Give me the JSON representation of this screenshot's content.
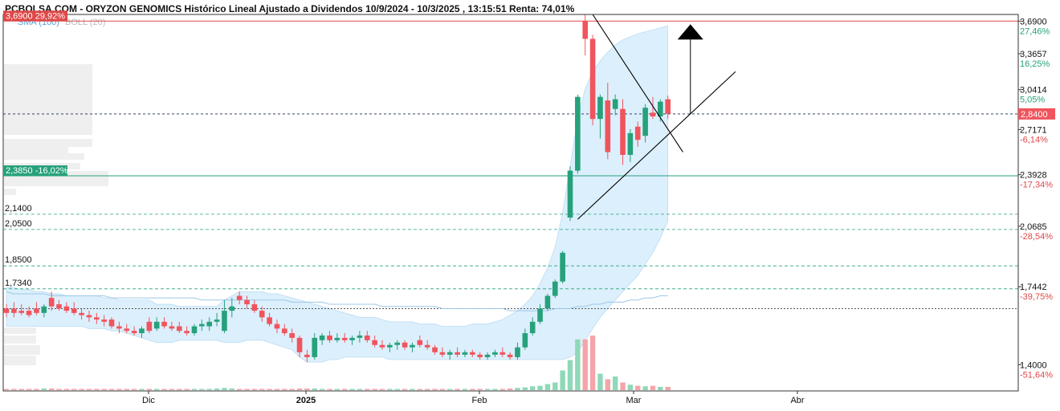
{
  "header": {
    "title": "PCBOLSA.COM - ORYZON GENOMICS Histórico Lineal Ajustado a Dividendos 10/9/2024 - 10/3/2025 , 13:15:51 Renta: 74,01%",
    "indicators": [
      "SMA (100)",
      "BOLL (20)"
    ]
  },
  "colors": {
    "up": "#26a17b",
    "down": "#f0545d",
    "up_volume": "#8fd8b8",
    "down_volume": "#f5a5aa",
    "boll_fill": "#dceffc",
    "sma": "#9cc8e8",
    "resistance": "#e04848",
    "support": "#26a17b"
  },
  "chart_data": {
    "type": "candlestick",
    "x_axis": {
      "labels": [
        "Dic",
        "2025",
        "Feb",
        "Mar",
        "Abr"
      ]
    },
    "y_axis": {
      "scale": "log",
      "range": [
        1.3,
        3.76
      ],
      "ticks": [
        {
          "price": "3,6900",
          "pct": "27,46%",
          "sign": "pos",
          "value": 3.69
        },
        {
          "price": "3,3657",
          "pct": "16,25%",
          "sign": "pos",
          "value": 3.3657
        },
        {
          "price": "3,0414",
          "pct": "5,05%",
          "sign": "pos",
          "value": 3.0414
        },
        {
          "price": "2,7171",
          "pct": "-6,14%",
          "sign": "neg",
          "value": 2.7171
        },
        {
          "price": "2,3928",
          "pct": "-17,34%",
          "sign": "neg",
          "value": 2.3928
        },
        {
          "price": "2,0685",
          "pct": "-28,54%",
          "sign": "neg",
          "value": 2.0685
        },
        {
          "price": "1,7442",
          "pct": "-39,75%",
          "sign": "neg",
          "value": 1.7442
        },
        {
          "price": "1,4000",
          "pct": "-51,64%",
          "sign": "neg",
          "value": 1.4
        }
      ]
    },
    "last_price": {
      "label": "2,8400",
      "value": 2.84
    },
    "reference_lines": [
      {
        "type": "resistance",
        "label": "3,6900  29,92%",
        "value": 3.69
      },
      {
        "type": "support",
        "label": "2,3850  -16,02%",
        "value": 2.385
      },
      {
        "type": "level",
        "label": "2,1400",
        "value": 2.14
      },
      {
        "type": "level",
        "label": "2,0500",
        "value": 2.05
      },
      {
        "type": "level",
        "label": "1,8500",
        "value": 1.85
      },
      {
        "type": "level",
        "label": "1,7340",
        "value": 1.734
      },
      {
        "type": "level",
        "label": "",
        "value": 1.64
      }
    ],
    "candles": [
      {
        "o": 1.64,
        "h": 1.66,
        "l": 1.6,
        "c": 1.62
      },
      {
        "o": 1.64,
        "h": 1.67,
        "l": 1.6,
        "c": 1.62
      },
      {
        "o": 1.63,
        "h": 1.66,
        "l": 1.61,
        "c": 1.62
      },
      {
        "o": 1.63,
        "h": 1.65,
        "l": 1.6,
        "c": 1.61
      },
      {
        "o": 1.64,
        "h": 1.67,
        "l": 1.61,
        "c": 1.62
      },
      {
        "o": 1.62,
        "h": 1.66,
        "l": 1.6,
        "c": 1.65
      },
      {
        "o": 1.69,
        "h": 1.72,
        "l": 1.63,
        "c": 1.65
      },
      {
        "o": 1.66,
        "h": 1.68,
        "l": 1.63,
        "c": 1.64
      },
      {
        "o": 1.65,
        "h": 1.67,
        "l": 1.62,
        "c": 1.63
      },
      {
        "o": 1.64,
        "h": 1.67,
        "l": 1.61,
        "c": 1.62
      },
      {
        "o": 1.62,
        "h": 1.64,
        "l": 1.59,
        "c": 1.61
      },
      {
        "o": 1.61,
        "h": 1.63,
        "l": 1.58,
        "c": 1.6
      },
      {
        "o": 1.6,
        "h": 1.62,
        "l": 1.57,
        "c": 1.59
      },
      {
        "o": 1.59,
        "h": 1.61,
        "l": 1.56,
        "c": 1.58
      },
      {
        "o": 1.59,
        "h": 1.6,
        "l": 1.55,
        "c": 1.56
      },
      {
        "o": 1.56,
        "h": 1.58,
        "l": 1.53,
        "c": 1.55
      },
      {
        "o": 1.55,
        "h": 1.57,
        "l": 1.53,
        "c": 1.54
      },
      {
        "o": 1.54,
        "h": 1.56,
        "l": 1.52,
        "c": 1.53
      },
      {
        "o": 1.53,
        "h": 1.56,
        "l": 1.51,
        "c": 1.55
      },
      {
        "o": 1.58,
        "h": 1.6,
        "l": 1.53,
        "c": 1.54
      },
      {
        "o": 1.55,
        "h": 1.6,
        "l": 1.54,
        "c": 1.58
      },
      {
        "o": 1.58,
        "h": 1.6,
        "l": 1.55,
        "c": 1.56
      },
      {
        "o": 1.56,
        "h": 1.58,
        "l": 1.54,
        "c": 1.55
      },
      {
        "o": 1.56,
        "h": 1.58,
        "l": 1.53,
        "c": 1.54
      },
      {
        "o": 1.54,
        "h": 1.56,
        "l": 1.52,
        "c": 1.53
      },
      {
        "o": 1.53,
        "h": 1.57,
        "l": 1.52,
        "c": 1.56
      },
      {
        "o": 1.56,
        "h": 1.59,
        "l": 1.54,
        "c": 1.57
      },
      {
        "o": 1.56,
        "h": 1.6,
        "l": 1.54,
        "c": 1.58
      },
      {
        "o": 1.58,
        "h": 1.62,
        "l": 1.56,
        "c": 1.59
      },
      {
        "o": 1.54,
        "h": 1.68,
        "l": 1.53,
        "c": 1.63
      },
      {
        "o": 1.63,
        "h": 1.69,
        "l": 1.6,
        "c": 1.65
      },
      {
        "o": 1.7,
        "h": 1.72,
        "l": 1.66,
        "c": 1.68
      },
      {
        "o": 1.68,
        "h": 1.7,
        "l": 1.64,
        "c": 1.66
      },
      {
        "o": 1.66,
        "h": 1.68,
        "l": 1.62,
        "c": 1.63
      },
      {
        "o": 1.63,
        "h": 1.65,
        "l": 1.58,
        "c": 1.6
      },
      {
        "o": 1.6,
        "h": 1.62,
        "l": 1.56,
        "c": 1.57
      },
      {
        "o": 1.57,
        "h": 1.59,
        "l": 1.53,
        "c": 1.55
      },
      {
        "o": 1.55,
        "h": 1.57,
        "l": 1.52,
        "c": 1.53
      },
      {
        "o": 1.53,
        "h": 1.55,
        "l": 1.49,
        "c": 1.51
      },
      {
        "o": 1.51,
        "h": 1.52,
        "l": 1.43,
        "c": 1.45
      },
      {
        "o": 1.44,
        "h": 1.46,
        "l": 1.41,
        "c": 1.43
      },
      {
        "o": 1.43,
        "h": 1.53,
        "l": 1.42,
        "c": 1.51
      },
      {
        "o": 1.5,
        "h": 1.53,
        "l": 1.48,
        "c": 1.52
      },
      {
        "o": 1.52,
        "h": 1.54,
        "l": 1.49,
        "c": 1.5
      },
      {
        "o": 1.5,
        "h": 1.53,
        "l": 1.49,
        "c": 1.51
      },
      {
        "o": 1.51,
        "h": 1.53,
        "l": 1.49,
        "c": 1.5
      },
      {
        "o": 1.5,
        "h": 1.52,
        "l": 1.48,
        "c": 1.51
      },
      {
        "o": 1.51,
        "h": 1.54,
        "l": 1.49,
        "c": 1.52
      },
      {
        "o": 1.52,
        "h": 1.54,
        "l": 1.49,
        "c": 1.5
      },
      {
        "o": 1.5,
        "h": 1.52,
        "l": 1.47,
        "c": 1.48
      },
      {
        "o": 1.48,
        "h": 1.5,
        "l": 1.46,
        "c": 1.47
      },
      {
        "o": 1.47,
        "h": 1.49,
        "l": 1.45,
        "c": 1.48
      },
      {
        "o": 1.48,
        "h": 1.5,
        "l": 1.46,
        "c": 1.49
      },
      {
        "o": 1.49,
        "h": 1.5,
        "l": 1.46,
        "c": 1.47
      },
      {
        "o": 1.47,
        "h": 1.49,
        "l": 1.45,
        "c": 1.48
      },
      {
        "o": 1.5,
        "h": 1.52,
        "l": 1.47,
        "c": 1.48
      },
      {
        "o": 1.48,
        "h": 1.5,
        "l": 1.46,
        "c": 1.47
      },
      {
        "o": 1.47,
        "h": 1.48,
        "l": 1.44,
        "c": 1.45
      },
      {
        "o": 1.45,
        "h": 1.47,
        "l": 1.43,
        "c": 1.44
      },
      {
        "o": 1.44,
        "h": 1.46,
        "l": 1.42,
        "c": 1.45
      },
      {
        "o": 1.45,
        "h": 1.47,
        "l": 1.43,
        "c": 1.44
      },
      {
        "o": 1.44,
        "h": 1.46,
        "l": 1.43,
        "c": 1.45
      },
      {
        "o": 1.45,
        "h": 1.46,
        "l": 1.43,
        "c": 1.44
      },
      {
        "o": 1.44,
        "h": 1.45,
        "l": 1.42,
        "c": 1.43
      },
      {
        "o": 1.43,
        "h": 1.45,
        "l": 1.42,
        "c": 1.44
      },
      {
        "o": 1.44,
        "h": 1.46,
        "l": 1.43,
        "c": 1.45
      },
      {
        "o": 1.45,
        "h": 1.47,
        "l": 1.43,
        "c": 1.44
      },
      {
        "o": 1.44,
        "h": 1.45,
        "l": 1.42,
        "c": 1.43
      },
      {
        "o": 1.43,
        "h": 1.49,
        "l": 1.42,
        "c": 1.47
      },
      {
        "o": 1.47,
        "h": 1.55,
        "l": 1.46,
        "c": 1.53
      },
      {
        "o": 1.53,
        "h": 1.6,
        "l": 1.52,
        "c": 1.58
      },
      {
        "o": 1.58,
        "h": 1.66,
        "l": 1.57,
        "c": 1.64
      },
      {
        "o": 1.64,
        "h": 1.71,
        "l": 1.63,
        "c": 1.7
      },
      {
        "o": 1.7,
        "h": 1.78,
        "l": 1.69,
        "c": 1.77
      },
      {
        "o": 1.77,
        "h": 1.93,
        "l": 1.76,
        "c": 1.92
      },
      {
        "o": 2.12,
        "h": 2.45,
        "l": 2.1,
        "c": 2.42
      },
      {
        "o": 2.42,
        "h": 3.0,
        "l": 2.4,
        "c": 2.98
      },
      {
        "o": 3.69,
        "h": 3.76,
        "l": 3.35,
        "c": 3.51
      },
      {
        "o": 3.51,
        "h": 3.55,
        "l": 2.75,
        "c": 2.8
      },
      {
        "o": 2.8,
        "h": 3.0,
        "l": 2.65,
        "c": 2.98
      },
      {
        "o": 2.95,
        "h": 3.1,
        "l": 2.5,
        "c": 2.55
      },
      {
        "o": 2.88,
        "h": 3.0,
        "l": 2.83,
        "c": 2.96
      },
      {
        "o": 2.88,
        "h": 2.96,
        "l": 2.46,
        "c": 2.53
      },
      {
        "o": 2.53,
        "h": 2.72,
        "l": 2.48,
        "c": 2.69
      },
      {
        "o": 2.74,
        "h": 2.78,
        "l": 2.59,
        "c": 2.64
      },
      {
        "o": 2.67,
        "h": 2.92,
        "l": 2.62,
        "c": 2.89
      },
      {
        "o": 2.85,
        "h": 2.98,
        "l": 2.8,
        "c": 2.82
      },
      {
        "o": 2.82,
        "h": 2.96,
        "l": 2.78,
        "c": 2.94
      },
      {
        "o": 2.96,
        "h": 2.99,
        "l": 2.8,
        "c": 2.84
      }
    ],
    "volume_relative": [
      0.02,
      0.02,
      0.02,
      0.02,
      0.02,
      0.03,
      0.03,
      0.02,
      0.02,
      0.02,
      0.02,
      0.02,
      0.02,
      0.02,
      0.02,
      0.02,
      0.02,
      0.02,
      0.02,
      0.02,
      0.02,
      0.02,
      0.02,
      0.02,
      0.02,
      0.02,
      0.02,
      0.02,
      0.03,
      0.04,
      0.03,
      0.02,
      0.02,
      0.02,
      0.02,
      0.02,
      0.02,
      0.02,
      0.02,
      0.03,
      0.03,
      0.03,
      0.02,
      0.02,
      0.02,
      0.02,
      0.02,
      0.02,
      0.02,
      0.02,
      0.02,
      0.02,
      0.02,
      0.02,
      0.02,
      0.02,
      0.02,
      0.02,
      0.02,
      0.02,
      0.02,
      0.02,
      0.02,
      0.02,
      0.02,
      0.02,
      0.02,
      0.03,
      0.04,
      0.05,
      0.07,
      0.08,
      0.11,
      0.14,
      0.36,
      0.55,
      0.93,
      0.93,
      1.0,
      0.3,
      0.2,
      0.25,
      0.14,
      0.1,
      0.08,
      0.07,
      0.08,
      0.06,
      0.06
    ],
    "bollinger_band": {
      "start_index": 0,
      "upper": [
        1.74,
        1.74,
        1.73,
        1.73,
        1.72,
        1.72,
        1.71,
        1.71,
        1.7,
        1.7,
        1.7,
        1.7,
        1.7,
        1.69,
        1.69,
        1.68,
        1.68,
        1.68,
        1.68,
        1.68,
        1.66,
        1.66,
        1.66,
        1.65,
        1.65,
        1.65,
        1.65,
        1.65,
        1.65,
        1.68,
        1.7,
        1.72,
        1.72,
        1.72,
        1.72,
        1.71,
        1.71,
        1.7,
        1.69,
        1.68,
        1.67,
        1.66,
        1.65,
        1.64,
        1.63,
        1.62,
        1.61,
        1.6,
        1.6,
        1.6,
        1.59,
        1.58,
        1.58,
        1.58,
        1.58,
        1.57,
        1.57,
        1.57,
        1.56,
        1.56,
        1.56,
        1.56,
        1.57,
        1.57,
        1.57,
        1.58,
        1.59,
        1.61,
        1.63,
        1.66,
        1.7,
        1.76,
        1.84,
        1.95,
        2.15,
        2.45,
        2.8,
        3.05,
        3.2,
        3.3,
        3.38,
        3.45,
        3.5,
        3.53,
        3.56,
        3.58,
        3.6,
        3.62,
        3.64
      ],
      "lower": [
        1.56,
        1.56,
        1.56,
        1.56,
        1.56,
        1.56,
        1.56,
        1.56,
        1.56,
        1.56,
        1.56,
        1.55,
        1.55,
        1.55,
        1.54,
        1.54,
        1.53,
        1.52,
        1.51,
        1.5,
        1.49,
        1.49,
        1.49,
        1.5,
        1.5,
        1.5,
        1.5,
        1.5,
        1.5,
        1.49,
        1.49,
        1.49,
        1.5,
        1.5,
        1.5,
        1.49,
        1.48,
        1.47,
        1.46,
        1.43,
        1.41,
        1.41,
        1.41,
        1.42,
        1.42,
        1.43,
        1.43,
        1.43,
        1.43,
        1.43,
        1.43,
        1.42,
        1.42,
        1.42,
        1.42,
        1.42,
        1.42,
        1.42,
        1.42,
        1.42,
        1.42,
        1.42,
        1.42,
        1.42,
        1.42,
        1.42,
        1.42,
        1.42,
        1.42,
        1.42,
        1.42,
        1.42,
        1.42,
        1.42,
        1.42,
        1.43,
        1.45,
        1.5,
        1.55,
        1.6,
        1.64,
        1.68,
        1.72,
        1.76,
        1.8,
        1.86,
        1.92,
        2.0,
        2.1
      ]
    },
    "sma_100": [
      1.72,
      1.71,
      1.71,
      1.71,
      1.71,
      1.71,
      1.7,
      1.7,
      1.7,
      1.7,
      1.7,
      1.7,
      1.7,
      1.7,
      1.69,
      1.69,
      1.69,
      1.69,
      1.69,
      1.69,
      1.69,
      1.69,
      1.69,
      1.69,
      1.69,
      1.69,
      1.68,
      1.68,
      1.68,
      1.68,
      1.68,
      1.68,
      1.68,
      1.68,
      1.68,
      1.68,
      1.68,
      1.68,
      1.67,
      1.67,
      1.67,
      1.67,
      1.67,
      1.66,
      1.66,
      1.66,
      1.66,
      1.66,
      1.66,
      1.66,
      1.65,
      1.65,
      1.65,
      1.65,
      1.65,
      1.65,
      1.65,
      1.65,
      1.64,
      1.64,
      1.64,
      1.64,
      1.64,
      1.64,
      1.64,
      1.64,
      1.64,
      1.63,
      1.63,
      1.63,
      1.63,
      1.63,
      1.63,
      1.64,
      1.64,
      1.64,
      1.65,
      1.65,
      1.66,
      1.66,
      1.67,
      1.67,
      1.67,
      1.68,
      1.68,
      1.69,
      1.69,
      1.7,
      1.7
    ]
  }
}
